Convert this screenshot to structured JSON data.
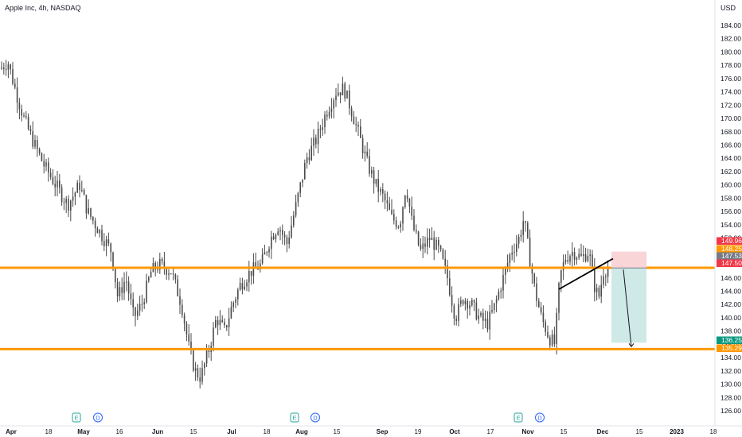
{
  "header": {
    "symbol_title": "Apple Inc, 4h, NASDAQ",
    "currency": "USD"
  },
  "chart_data": {
    "type": "candlestick",
    "title": "Apple Inc, 4h, NASDAQ",
    "y_axis": {
      "min": 124,
      "max": 186,
      "step": 2,
      "ticks": [
        126,
        128,
        130,
        132,
        134,
        136,
        138,
        140,
        142,
        144,
        146,
        148,
        150,
        152,
        154,
        156,
        158,
        160,
        162,
        164,
        166,
        168,
        170,
        172,
        174,
        176,
        178,
        180,
        182,
        184
      ]
    },
    "x_axis": {
      "labels": [
        "Apr",
        "18",
        "May",
        "16",
        "Jun",
        "15",
        "Jul",
        "18",
        "Aug",
        "15",
        "Sep",
        "19",
        "Oct",
        "17",
        "Nov",
        "15",
        "Dec",
        "15",
        "2023",
        "18"
      ],
      "bold_labels": [
        "Apr",
        "May",
        "Jun",
        "Jul",
        "Aug",
        "Sep",
        "Oct",
        "Nov",
        "Dec",
        "2023"
      ]
    },
    "price_path": [
      {
        "i": 0,
        "p": 177.5
      },
      {
        "i": 10,
        "p": 178.5
      },
      {
        "i": 20,
        "p": 174
      },
      {
        "i": 30,
        "p": 170
      },
      {
        "i": 40,
        "p": 167
      },
      {
        "i": 55,
        "p": 163
      },
      {
        "i": 70,
        "p": 160
      },
      {
        "i": 85,
        "p": 157
      },
      {
        "i": 100,
        "p": 160
      },
      {
        "i": 110,
        "p": 156
      },
      {
        "i": 125,
        "p": 153
      },
      {
        "i": 140,
        "p": 150
      },
      {
        "i": 148,
        "p": 143
      },
      {
        "i": 158,
        "p": 146
      },
      {
        "i": 168,
        "p": 140
      },
      {
        "i": 178,
        "p": 142
      },
      {
        "i": 190,
        "p": 147
      },
      {
        "i": 200,
        "p": 148
      },
      {
        "i": 215,
        "p": 147
      },
      {
        "i": 228,
        "p": 142
      },
      {
        "i": 238,
        "p": 135
      },
      {
        "i": 245,
        "p": 132
      },
      {
        "i": 252,
        "p": 131
      },
      {
        "i": 262,
        "p": 135
      },
      {
        "i": 272,
        "p": 140
      },
      {
        "i": 282,
        "p": 138
      },
      {
        "i": 292,
        "p": 142
      },
      {
        "i": 302,
        "p": 145
      },
      {
        "i": 315,
        "p": 147
      },
      {
        "i": 328,
        "p": 148
      },
      {
        "i": 340,
        "p": 152
      },
      {
        "i": 350,
        "p": 154
      },
      {
        "i": 360,
        "p": 151
      },
      {
        "i": 372,
        "p": 157
      },
      {
        "i": 385,
        "p": 164
      },
      {
        "i": 398,
        "p": 167
      },
      {
        "i": 410,
        "p": 171
      },
      {
        "i": 422,
        "p": 174
      },
      {
        "i": 432,
        "p": 174.5
      },
      {
        "i": 442,
        "p": 171
      },
      {
        "i": 452,
        "p": 167
      },
      {
        "i": 462,
        "p": 163
      },
      {
        "i": 472,
        "p": 160
      },
      {
        "i": 482,
        "p": 158
      },
      {
        "i": 492,
        "p": 155
      },
      {
        "i": 502,
        "p": 154
      },
      {
        "i": 510,
        "p": 160
      },
      {
        "i": 518,
        "p": 154
      },
      {
        "i": 528,
        "p": 150
      },
      {
        "i": 540,
        "p": 152
      },
      {
        "i": 552,
        "p": 150
      },
      {
        "i": 562,
        "p": 146
      },
      {
        "i": 572,
        "p": 140
      },
      {
        "i": 582,
        "p": 143
      },
      {
        "i": 592,
        "p": 142
      },
      {
        "i": 602,
        "p": 140
      },
      {
        "i": 612,
        "p": 139
      },
      {
        "i": 622,
        "p": 142
      },
      {
        "i": 632,
        "p": 146
      },
      {
        "i": 642,
        "p": 150
      },
      {
        "i": 652,
        "p": 152
      },
      {
        "i": 658,
        "p": 155
      },
      {
        "i": 664,
        "p": 150
      },
      {
        "i": 672,
        "p": 144
      },
      {
        "i": 680,
        "p": 140
      },
      {
        "i": 690,
        "p": 137
      },
      {
        "i": 697,
        "p": 136
      },
      {
        "i": 703,
        "p": 146
      },
      {
        "i": 710,
        "p": 149
      },
      {
        "i": 720,
        "p": 150
      },
      {
        "i": 730,
        "p": 149
      },
      {
        "i": 740,
        "p": 150
      },
      {
        "i": 746,
        "p": 145
      },
      {
        "i": 752,
        "p": 143
      },
      {
        "i": 758,
        "p": 147
      },
      {
        "i": 765,
        "p": 147.5
      }
    ],
    "candle_range": {
      "x_start": 2,
      "x_end": 766,
      "spacing": 2.8
    },
    "horizontal_levels": [
      {
        "price": 147.53,
        "color": "#ff9800",
        "width": 3
      },
      {
        "price": 135.29,
        "color": "#ff9800",
        "width": 3
      }
    ],
    "trend_line": {
      "from": {
        "x_index": 700,
        "price": 144.3
      },
      "to": {
        "x_index": 768,
        "price": 148.9
      }
    },
    "short_position": {
      "entry": 147.5,
      "stop": 149.96,
      "target": 136.25,
      "stop_zone_color": "#f9d5d8",
      "target_zone_color": "#cfe9e6",
      "projection": {
        "to_price": 135.29
      }
    },
    "price_labels": [
      {
        "value": "149.96",
        "bg": "#f23645"
      },
      {
        "value": "148.25",
        "bg": "#ff9800"
      },
      {
        "value": "147.53",
        "bg": "#787b86"
      },
      {
        "value": "147.50",
        "bg": "#f23645"
      },
      {
        "value": "136.25",
        "bg": "#089981"
      },
      {
        "value": "135.29",
        "bg": "#ff9800"
      }
    ],
    "event_markers": [
      {
        "type": "E",
        "date": "Apr 28"
      },
      {
        "type": "D",
        "date": "May 5"
      },
      {
        "type": "E",
        "date": "Jul 28"
      },
      {
        "type": "D",
        "date": "Aug 5"
      },
      {
        "type": "E",
        "date": "Oct 27"
      },
      {
        "type": "D",
        "date": "Nov 4"
      }
    ],
    "colors": {
      "candles": "#4a4a4a",
      "axis_text": "#131722",
      "axis_border": "#e0e3eb",
      "event_E": "#26a69a",
      "event_D": "#2962ff"
    }
  }
}
